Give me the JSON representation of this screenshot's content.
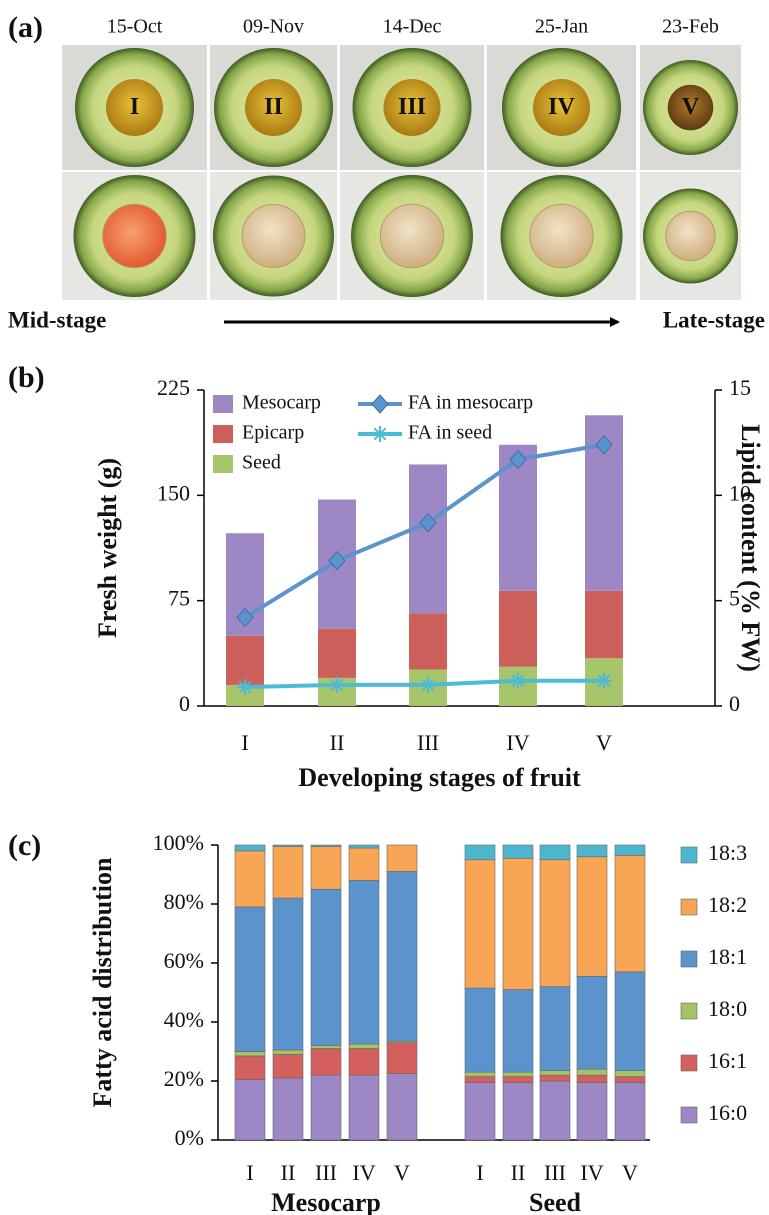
{
  "panel_labels": [
    "(a)",
    "(b)",
    "(c)"
  ],
  "photos": {
    "dates": [
      "15-Oct",
      "09-Nov",
      "14-Dec",
      "25-Jan",
      "23-Feb"
    ],
    "stages": [
      "I",
      "II",
      "III",
      "IV",
      "V"
    ],
    "start_label": "Mid-stage",
    "end_label": "Late-stage"
  },
  "chart_data": [
    {
      "type": "bar",
      "stacked": true,
      "ylabel": "Fresh weight (g)",
      "y2label": "Lipid content (% FW)",
      "xlabel": "Developing stages of fruit",
      "categories": [
        "I",
        "II",
        "III",
        "IV",
        "V"
      ],
      "ylim": [
        0,
        225
      ],
      "yticks": [
        0,
        75,
        150,
        225
      ],
      "y2lim": [
        0,
        15
      ],
      "y2ticks": [
        0,
        5,
        10,
        15
      ],
      "series": [
        {
          "name": "Mesocarp",
          "color": "#9d87c5",
          "values": [
            73,
            92,
            106,
            104,
            125
          ]
        },
        {
          "name": "Epicarp",
          "color": "#cd5f5b",
          "values": [
            35,
            35,
            40,
            54,
            48
          ]
        },
        {
          "name": "Seed",
          "color": "#a7c56b",
          "values": [
            15,
            20,
            26,
            28,
            34
          ]
        },
        {
          "name": "FA in mesocarp",
          "type": "line",
          "axis": "y2",
          "marker": "diamond",
          "color": "#5b93cd",
          "values": [
            4.2,
            6.9,
            8.7,
            11.7,
            12.4
          ]
        },
        {
          "name": "FA in seed",
          "type": "line",
          "axis": "y2",
          "marker": "asterisk",
          "color": "#4dbad6",
          "values": [
            0.9,
            1.0,
            1.0,
            1.2,
            1.2
          ]
        }
      ]
    },
    {
      "type": "bar",
      "stacked": true,
      "ylabel": "Fatty acid distribution",
      "categories": [
        {
          "group": "Mesocarp",
          "labels": [
            "I",
            "II",
            "III",
            "IV",
            "V"
          ]
        },
        {
          "group": "Seed",
          "labels": [
            "I",
            "II",
            "III",
            "IV",
            "V"
          ]
        }
      ],
      "ylim": [
        0,
        100
      ],
      "yticks": [
        {
          "value": 0,
          "label": "0%"
        },
        {
          "value": 20,
          "label": "20%"
        },
        {
          "value": 40,
          "label": "40%"
        },
        {
          "value": 60,
          "label": "60%"
        },
        {
          "value": 80,
          "label": "80%"
        },
        {
          "value": 100,
          "label": "100%"
        }
      ],
      "series": [
        {
          "name": "18:3",
          "color": "#4cb6cf",
          "values": [
            [
              2,
              0.5,
              0.5,
              1,
              0
            ],
            [
              5,
              4.5,
              5,
              4,
              3.5
            ]
          ]
        },
        {
          "name": "18:2",
          "color": "#f8a556",
          "values": [
            [
              19,
              17.5,
              14.5,
              11,
              9
            ],
            [
              43.5,
              44.5,
              43,
              40.5,
              39.5
            ]
          ]
        },
        {
          "name": "18:1",
          "color": "#5b93cd",
          "values": [
            [
              49,
              51.5,
              53,
              55.5,
              57.5
            ],
            [
              28.5,
              28,
              28.5,
              31.5,
              33.5
            ]
          ]
        },
        {
          "name": "18:0",
          "color": "#a3c466",
          "values": [
            [
              1.5,
              1.5,
              1,
              1.5,
              0.5
            ],
            [
              1.5,
              1.5,
              1.5,
              2,
              2
            ]
          ]
        },
        {
          "name": "16:1",
          "color": "#d3605d",
          "values": [
            [
              8,
              8,
              9,
              9,
              10.5
            ],
            [
              2,
              2,
              2,
              2.5,
              2
            ]
          ]
        },
        {
          "name": "16:0",
          "color": "#9d87c5",
          "values": [
            [
              20.5,
              21,
              22,
              22,
              22.5
            ],
            [
              19.5,
              19.5,
              20,
              19.5,
              19.5
            ]
          ]
        }
      ]
    }
  ]
}
